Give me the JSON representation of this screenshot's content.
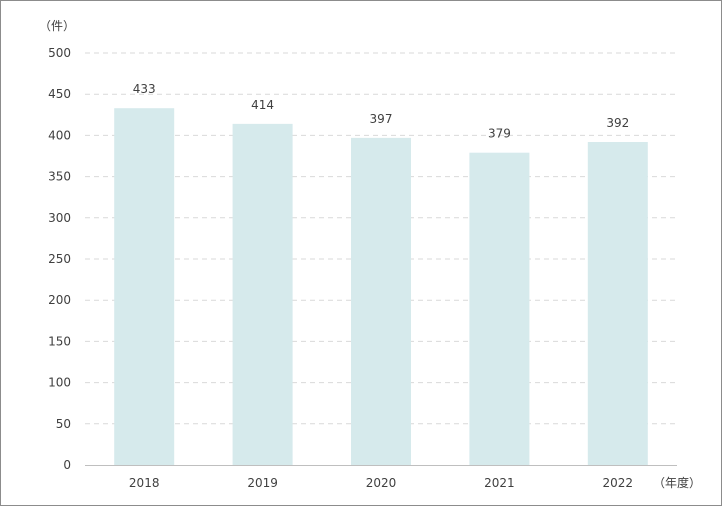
{
  "chart_data": {
    "type": "bar",
    "title": "",
    "xlabel": "",
    "ylabel": "",
    "y_unit_label": "（件）",
    "x_unit_label": "（年度）",
    "categories": [
      "2018",
      "2019",
      "2020",
      "2021",
      "2022"
    ],
    "values": [
      433,
      414,
      397,
      379,
      392
    ],
    "data_labels": [
      "433",
      "414",
      "397",
      "379",
      "392"
    ],
    "ylim": [
      0,
      500
    ],
    "yticks": [
      0,
      50,
      100,
      150,
      200,
      250,
      300,
      350,
      400,
      450,
      500
    ],
    "ytick_labels": [
      "0",
      "50",
      "100",
      "150",
      "200",
      "250",
      "300",
      "350",
      "400",
      "450",
      "500"
    ],
    "grid": true,
    "grid_style": "dashed",
    "bar_color": "#d6eaec",
    "legend": "none"
  }
}
